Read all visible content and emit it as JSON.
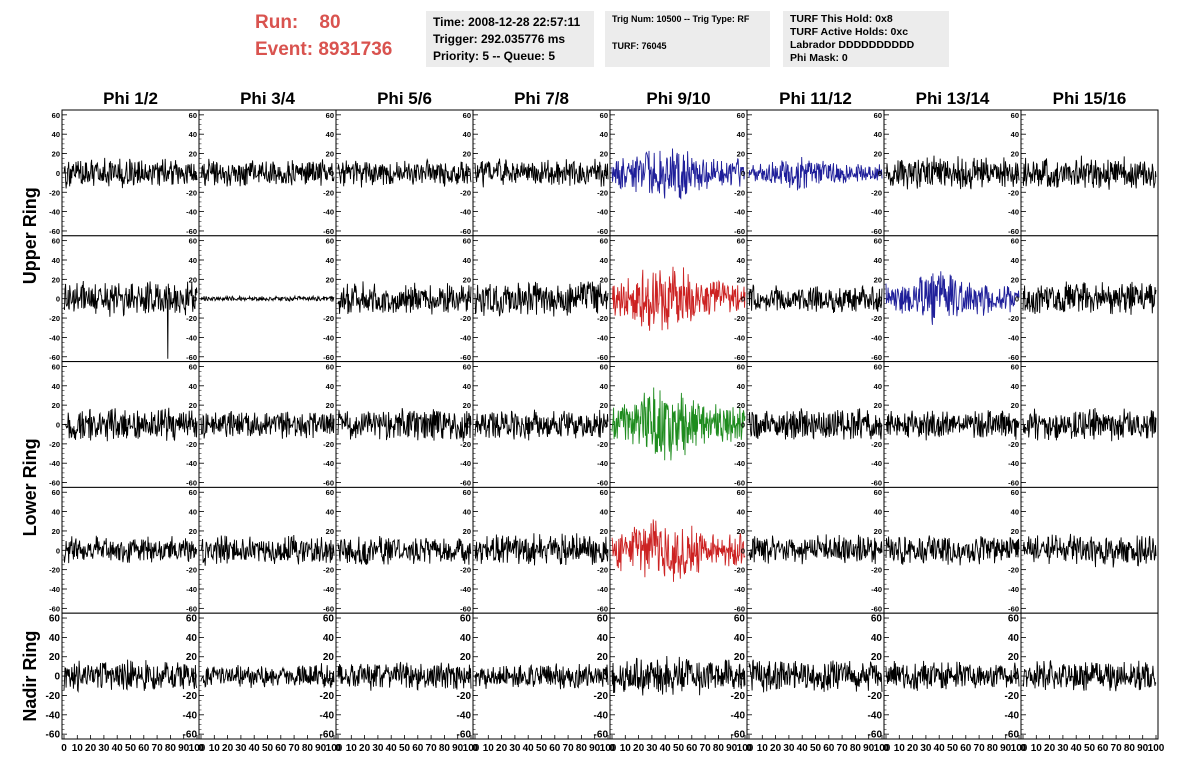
{
  "header": {
    "run_label": "Run:",
    "run_value": "80",
    "event_label": "Event:",
    "event_value": "8931736",
    "time_box": [
      "Time: 2008-12-28 22:57:11",
      "Trigger: 292.035776 ms",
      "Priority: 5 -- Queue: 5"
    ],
    "trig_box": [
      "Trig Num: 10500 -- Trig Type: RF",
      "TURF: 76045"
    ],
    "turf_box": [
      "TURF This Hold: 0x8",
      "TURF Active Holds: 0xc",
      "Labrador DDDDDDDDDD",
      "Phi Mask: 0"
    ]
  },
  "chart_data": {
    "type": "line",
    "columns": [
      "Phi 1/2",
      "Phi 3/4",
      "Phi 5/6",
      "Phi 7/8",
      "Phi 9/10",
      "Phi 11/12",
      "Phi 13/14",
      "Phi 15/16"
    ],
    "ring_labels": [
      "Upper Ring",
      "Lower Ring",
      "Nadir Ring"
    ],
    "ring_row_spans": [
      [
        0,
        1
      ],
      [
        2,
        3
      ],
      [
        4,
        4
      ]
    ],
    "rows": 5,
    "xlim": [
      0,
      100
    ],
    "x_tick_labels": [
      "0",
      "10",
      "20",
      "30",
      "40",
      "50",
      "60",
      "70",
      "80",
      "90",
      "100"
    ],
    "ylim": [
      -65,
      65
    ],
    "y_ticks": [
      -60,
      -40,
      -20,
      0,
      20,
      40,
      60
    ],
    "samples": 256,
    "grid": false,
    "colors": {
      "default": "#000000",
      "blue": "#1f1f9a",
      "red": "#cc2222",
      "green": "#1e8c1e"
    },
    "panels": [
      [
        {
          "c": "default",
          "a": 12,
          "spike": 0
        },
        {
          "c": "default",
          "a": 11,
          "spike": 0
        },
        {
          "c": "default",
          "a": 11,
          "spike": 0
        },
        {
          "c": "default",
          "a": 11,
          "spike": 0
        },
        {
          "c": "blue",
          "a": 17,
          "spike": 0
        },
        {
          "c": "blue",
          "a": 10,
          "spike": 0
        },
        {
          "c": "default",
          "a": 13,
          "spike": 0
        },
        {
          "c": "default",
          "a": 13,
          "spike": 0
        }
      ],
      [
        {
          "c": "default",
          "a": 14,
          "spike": -62
        },
        {
          "c": "default",
          "a": 2,
          "spike": 0
        },
        {
          "c": "default",
          "a": 13,
          "spike": 0
        },
        {
          "c": "default",
          "a": 14,
          "spike": 0
        },
        {
          "c": "red",
          "a": 20,
          "spike": 0
        },
        {
          "c": "default",
          "a": 11,
          "spike": 0
        },
        {
          "c": "blue",
          "a": 16,
          "spike": 0
        },
        {
          "c": "default",
          "a": 13,
          "spike": 0
        }
      ],
      [
        {
          "c": "default",
          "a": 14,
          "spike": 0
        },
        {
          "c": "default",
          "a": 12,
          "spike": 0
        },
        {
          "c": "default",
          "a": 13,
          "spike": 0
        },
        {
          "c": "default",
          "a": 12,
          "spike": 0
        },
        {
          "c": "green",
          "a": 22,
          "spike": 0
        },
        {
          "c": "default",
          "a": 13,
          "spike": 0
        },
        {
          "c": "default",
          "a": 12,
          "spike": 0
        },
        {
          "c": "default",
          "a": 13,
          "spike": 0
        }
      ],
      [
        {
          "c": "default",
          "a": 11,
          "spike": 0
        },
        {
          "c": "default",
          "a": 12,
          "spike": 0
        },
        {
          "c": "default",
          "a": 12,
          "spike": 0
        },
        {
          "c": "default",
          "a": 13,
          "spike": 0
        },
        {
          "c": "red",
          "a": 20,
          "spike": 0
        },
        {
          "c": "default",
          "a": 12,
          "spike": 0
        },
        {
          "c": "default",
          "a": 12,
          "spike": 0
        },
        {
          "c": "default",
          "a": 13,
          "spike": 0
        }
      ],
      [
        {
          "c": "default",
          "a": 13,
          "spike": 0
        },
        {
          "c": "default",
          "a": 10,
          "spike": 0
        },
        {
          "c": "default",
          "a": 11,
          "spike": 0
        },
        {
          "c": "default",
          "a": 10,
          "spike": 0
        },
        {
          "c": "default",
          "a": 15,
          "spike": 0
        },
        {
          "c": "default",
          "a": 14,
          "spike": 0
        },
        {
          "c": "default",
          "a": 12,
          "spike": 0
        },
        {
          "c": "default",
          "a": 12,
          "spike": 0
        }
      ]
    ]
  }
}
